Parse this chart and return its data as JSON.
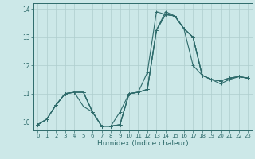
{
  "xlabel": "Humidex (Indice chaleur)",
  "xlim": [
    -0.5,
    23.5
  ],
  "ylim": [
    9.7,
    14.2
  ],
  "yticks": [
    10,
    11,
    12,
    13,
    14
  ],
  "xticks": [
    0,
    1,
    2,
    3,
    4,
    5,
    6,
    7,
    8,
    9,
    10,
    11,
    12,
    13,
    14,
    15,
    16,
    17,
    18,
    19,
    20,
    21,
    22,
    23
  ],
  "background_color": "#cce8e8",
  "line_color": "#2e6b6b",
  "grid_color": "#aecece",
  "lines": [
    [
      9.9,
      10.1,
      10.6,
      11.0,
      11.05,
      11.05,
      10.35,
      9.85,
      9.85,
      9.9,
      11.0,
      11.05,
      11.15,
      13.25,
      13.8,
      13.75,
      13.3,
      13.0,
      11.65,
      11.5,
      11.45,
      11.55,
      11.6,
      11.55
    ],
    [
      9.9,
      10.1,
      10.6,
      11.0,
      11.05,
      10.55,
      10.35,
      9.85,
      9.85,
      10.35,
      11.0,
      11.05,
      11.75,
      13.9,
      13.8,
      13.75,
      13.3,
      13.0,
      11.65,
      11.5,
      11.45,
      11.55,
      11.6,
      11.55
    ],
    [
      9.9,
      10.1,
      10.6,
      11.0,
      11.05,
      11.05,
      10.35,
      9.85,
      9.85,
      9.9,
      11.0,
      11.05,
      11.15,
      13.25,
      13.9,
      13.75,
      13.3,
      12.0,
      11.65,
      11.5,
      11.35,
      11.5,
      11.6,
      11.55
    ],
    [
      9.9,
      10.1,
      10.6,
      11.0,
      11.05,
      11.05,
      10.35,
      9.85,
      9.85,
      9.9,
      11.0,
      11.05,
      11.15,
      13.25,
      13.8,
      13.75,
      13.3,
      13.0,
      11.65,
      11.5,
      11.45,
      11.55,
      11.6,
      11.55
    ]
  ]
}
